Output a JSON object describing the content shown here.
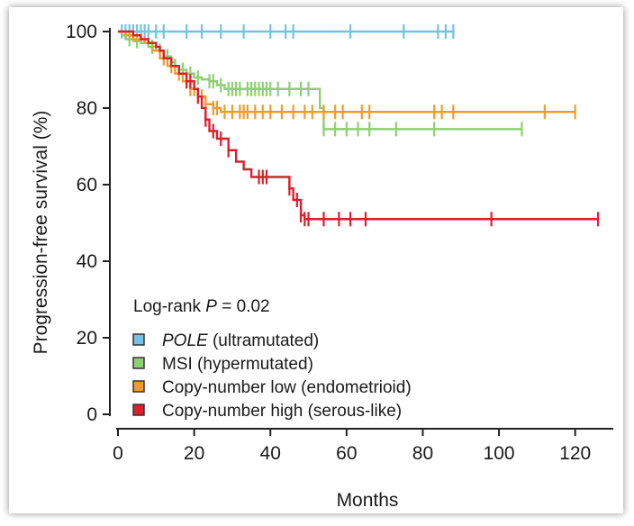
{
  "chart_data": {
    "type": "line",
    "subtype": "kaplan-meier",
    "xlabel": "Months",
    "ylabel": "Progression-free survival (%)",
    "xlim": [
      0,
      130
    ],
    "ylim": [
      0,
      100
    ],
    "xticks": [
      "0",
      "20",
      "40",
      "60",
      "80",
      "100",
      "120"
    ],
    "yticks": [
      "0",
      "20",
      "40",
      "60",
      "80",
      "100"
    ],
    "annotation": {
      "prefix": "Log-rank ",
      "italic": "P",
      "suffix": " = 0.02"
    },
    "series": [
      {
        "name": "POLE (ultramutated)",
        "name_italic": "POLE",
        "name_rest": " (ultramutated)",
        "color": "#74c3e3",
        "steps": [
          [
            0,
            100
          ],
          [
            88,
            100
          ]
        ],
        "censors": [
          1,
          2,
          3,
          4,
          5,
          6,
          7,
          8,
          10,
          12,
          18,
          22,
          27,
          33,
          40,
          44,
          46,
          61,
          75,
          84,
          86,
          88
        ]
      },
      {
        "name": "MSI (hypermutated)",
        "color": "#8ecf73",
        "steps": [
          [
            0,
            100
          ],
          [
            1,
            99
          ],
          [
            2,
            98
          ],
          [
            4,
            97.5
          ],
          [
            6,
            97
          ],
          [
            8,
            96
          ],
          [
            10,
            95
          ],
          [
            12,
            93.5
          ],
          [
            14,
            92
          ],
          [
            15,
            91
          ],
          [
            16,
            90
          ],
          [
            18,
            89
          ],
          [
            20,
            88
          ],
          [
            22,
            87.5
          ],
          [
            24,
            87
          ],
          [
            26,
            86
          ],
          [
            28,
            85
          ],
          [
            53,
            85
          ],
          [
            53,
            80
          ],
          [
            54,
            74.5
          ],
          [
            106,
            74.5
          ]
        ],
        "censors": [
          3,
          5,
          9,
          11,
          13,
          15,
          17,
          19,
          21,
          24,
          25,
          27,
          29,
          30,
          31,
          32,
          34,
          35,
          36,
          37,
          38,
          39,
          40,
          42,
          45,
          48,
          50,
          54,
          57,
          60,
          63,
          66,
          73,
          83,
          106
        ]
      },
      {
        "name": "Copy-number low (endometrioid)",
        "color": "#f29b2c",
        "steps": [
          [
            0,
            100
          ],
          [
            2,
            99
          ],
          [
            4,
            98
          ],
          [
            7,
            97
          ],
          [
            9,
            95
          ],
          [
            11,
            93
          ],
          [
            13,
            91
          ],
          [
            15,
            89
          ],
          [
            17,
            87
          ],
          [
            19,
            85
          ],
          [
            21,
            83
          ],
          [
            23,
            81
          ],
          [
            25,
            80
          ],
          [
            27,
            79
          ],
          [
            120,
            79
          ]
        ],
        "censors": [
          12,
          14,
          16,
          18,
          19,
          20,
          21,
          22,
          23,
          25,
          26,
          28,
          30,
          32,
          33,
          34,
          36,
          38,
          40,
          43,
          46,
          49,
          51,
          54,
          57,
          59,
          64,
          66,
          83,
          85,
          88,
          112,
          120
        ]
      },
      {
        "name": "Copy-number high (serous-like)",
        "color": "#d9202d",
        "steps": [
          [
            0,
            100
          ],
          [
            4,
            99
          ],
          [
            6,
            98
          ],
          [
            8,
            97
          ],
          [
            10,
            96
          ],
          [
            11,
            95
          ],
          [
            12,
            93
          ],
          [
            14,
            91
          ],
          [
            16,
            89
          ],
          [
            18,
            87
          ],
          [
            20,
            85
          ],
          [
            21,
            83
          ],
          [
            22,
            80
          ],
          [
            23,
            77
          ],
          [
            24,
            74
          ],
          [
            26,
            72
          ],
          [
            29,
            69
          ],
          [
            31,
            66
          ],
          [
            33,
            64
          ],
          [
            35,
            62
          ],
          [
            45,
            62
          ],
          [
            45,
            59
          ],
          [
            46,
            56
          ],
          [
            48,
            52
          ],
          [
            49,
            51
          ],
          [
            126,
            51
          ]
        ],
        "censors": [
          18,
          19,
          21,
          23,
          25,
          27,
          29,
          37,
          38,
          39,
          45,
          47,
          48,
          49,
          50,
          54,
          58,
          61,
          65,
          98,
          126
        ]
      }
    ]
  }
}
